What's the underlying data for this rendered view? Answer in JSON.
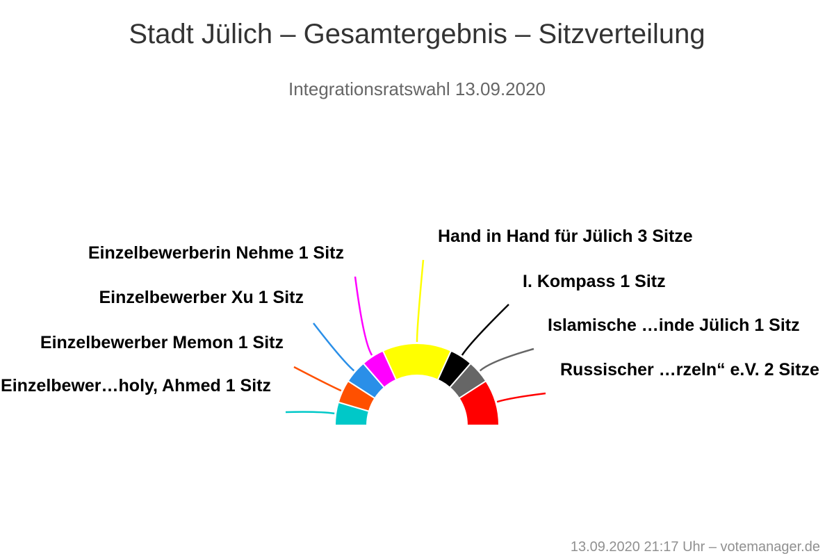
{
  "chart_data": {
    "type": "pie",
    "variant": "semicircle",
    "title": "Stadt Jülich – Gesamtergebnis – Sitzverteilung",
    "subtitle": "Integrationsratswahl 13.09.2020",
    "series": [
      {
        "label": "Einzelbewer…holy, Ahmed 1 Sitz",
        "value": 1,
        "color": "#00c8c8"
      },
      {
        "label": "Einzelbewerber Memon 1 Sitz",
        "value": 1,
        "color": "#ff5000"
      },
      {
        "label": "Einzelbewerber Xu 1 Sitz",
        "value": 1,
        "color": "#2a8fe8"
      },
      {
        "label": "Einzelbewerberin Nehme 1 Sitz",
        "value": 1,
        "color": "#ff00ff"
      },
      {
        "label": "Hand in Hand für Jülich 3 Sitze",
        "value": 3,
        "color": "#ffff00"
      },
      {
        "label": "I. Kompass 1 Sitz",
        "value": 1,
        "color": "#000000"
      },
      {
        "label": "Islamische …inde Jülich 1 Sitz",
        "value": 1,
        "color": "#666666"
      },
      {
        "label": "Russischer …rzeln“ e.V. 2 Sitze",
        "value": 2,
        "color": "#ff0000"
      }
    ],
    "credits": "13.09.2020 21:17 Uhr – votemanager.de"
  }
}
